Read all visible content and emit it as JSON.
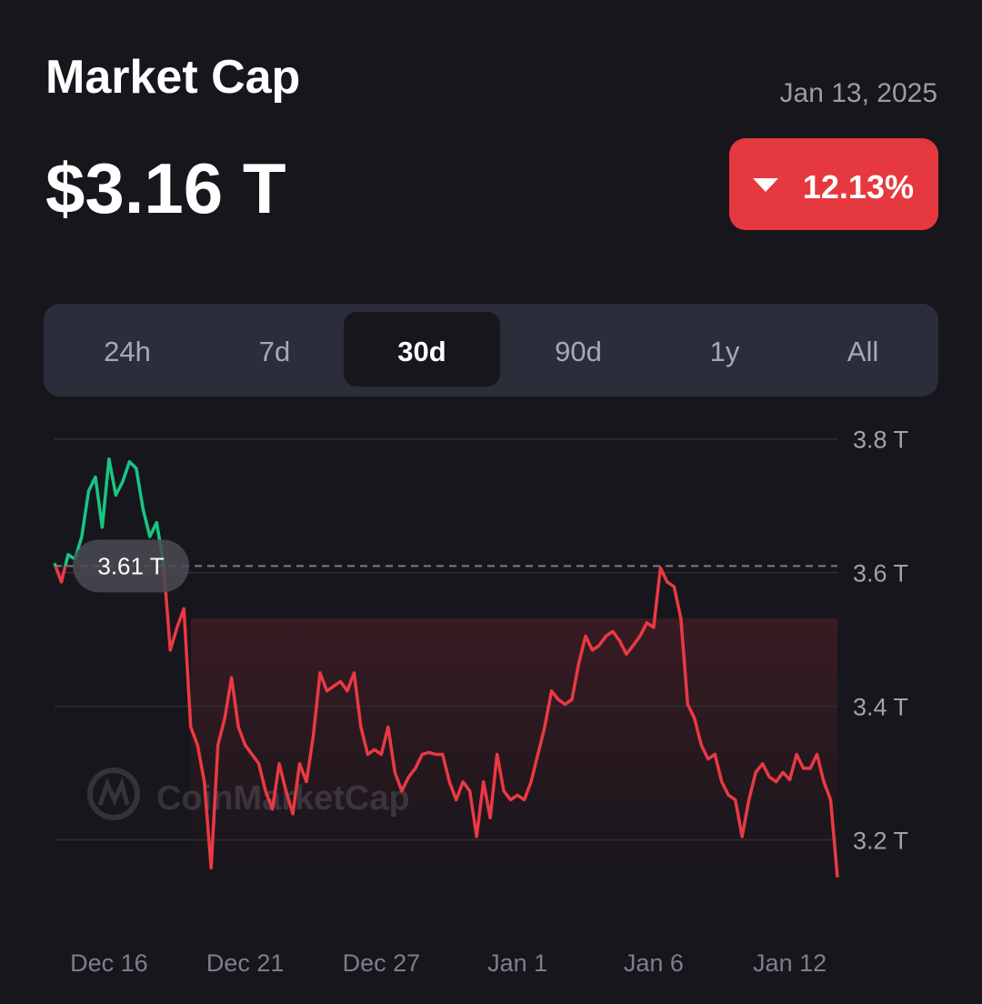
{
  "header": {
    "title": "Market Cap",
    "date": "Jan 13, 2025",
    "value": "$3.16 T",
    "change": "12.13%"
  },
  "tabs": {
    "items": [
      "24h",
      "7d",
      "30d",
      "90d",
      "1y",
      "All"
    ],
    "selected": 2
  },
  "watermark": "CoinMarketCap",
  "chart_data": {
    "type": "line",
    "categories": [
      null,
      null,
      null,
      null,
      null,
      null,
      null,
      null,
      "Dec 16",
      null,
      null,
      null,
      null,
      null,
      null,
      null,
      null,
      null,
      null,
      null,
      null,
      null,
      null,
      null,
      null,
      null,
      null,
      null,
      "Dec 21",
      null,
      null,
      null,
      null,
      null,
      null,
      null,
      null,
      null,
      null,
      null,
      null,
      null,
      null,
      null,
      null,
      null,
      null,
      null,
      "Dec 27",
      null,
      null,
      null,
      null,
      null,
      null,
      null,
      null,
      null,
      null,
      null,
      null,
      null,
      null,
      null,
      null,
      null,
      null,
      null,
      "Jan 1",
      null,
      null,
      null,
      null,
      null,
      null,
      null,
      null,
      null,
      null,
      null,
      null,
      null,
      null,
      null,
      null,
      null,
      null,
      null,
      "Jan 6",
      null,
      null,
      null,
      null,
      null,
      null,
      null,
      null,
      null,
      null,
      null,
      null,
      null,
      null,
      null,
      null,
      null,
      null,
      null,
      "Jan 12",
      null,
      null,
      null,
      null,
      null,
      null,
      null
    ],
    "values": [
      3.614,
      3.586,
      3.627,
      3.62,
      3.654,
      3.722,
      3.743,
      3.668,
      3.77,
      3.716,
      3.736,
      3.766,
      3.756,
      3.695,
      3.654,
      3.675,
      3.614,
      3.484,
      3.518,
      3.546,
      3.369,
      3.342,
      3.287,
      3.158,
      3.342,
      3.382,
      3.443,
      3.369,
      3.342,
      3.328,
      3.314,
      3.273,
      3.246,
      3.314,
      3.273,
      3.239,
      3.314,
      3.287,
      3.355,
      3.45,
      3.423,
      3.43,
      3.437,
      3.423,
      3.45,
      3.369,
      3.328,
      3.335,
      3.328,
      3.369,
      3.301,
      3.273,
      3.294,
      3.307,
      3.328,
      3.331,
      3.328,
      3.328,
      3.287,
      3.26,
      3.287,
      3.273,
      3.205,
      3.287,
      3.233,
      3.328,
      3.273,
      3.26,
      3.267,
      3.26,
      3.287,
      3.328,
      3.369,
      3.423,
      3.41,
      3.403,
      3.41,
      3.464,
      3.505,
      3.484,
      3.491,
      3.505,
      3.512,
      3.498,
      3.478,
      3.491,
      3.505,
      3.525,
      3.518,
      3.607,
      3.586,
      3.579,
      3.532,
      3.403,
      3.382,
      3.342,
      3.321,
      3.328,
      3.287,
      3.267,
      3.26,
      3.205,
      3.26,
      3.301,
      3.314,
      3.294,
      3.287,
      3.301,
      3.29,
      3.328,
      3.307,
      3.307,
      3.328,
      3.287,
      3.26,
      3.144
    ],
    "color": "#ea3943",
    "color_above_reference": "#16c784",
    "reference": {
      "value": 3.61,
      "label": "3.61 T"
    },
    "ylim": [
      3.1,
      3.85
    ],
    "yticks": [
      {
        "value": 3.2,
        "label": "3.2 T"
      },
      {
        "value": 3.4,
        "label": "3.4 T"
      },
      {
        "value": 3.6,
        "label": "3.6 T"
      },
      {
        "value": 3.8,
        "label": "3.8 T"
      }
    ],
    "grid": true
  }
}
